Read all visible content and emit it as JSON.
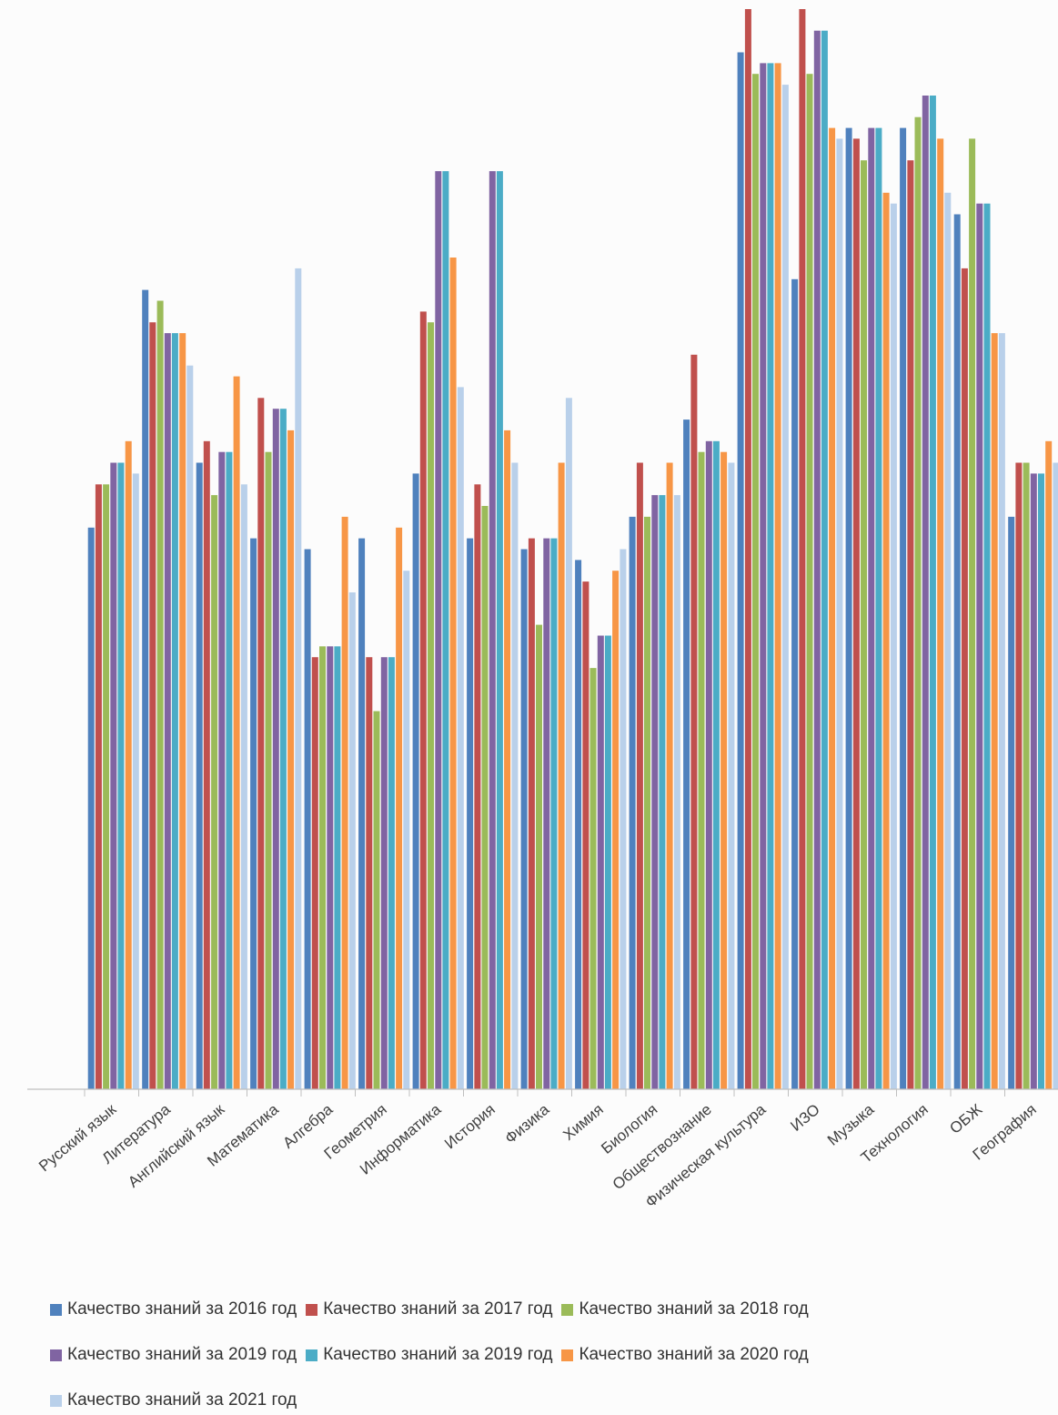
{
  "chart_data": {
    "type": "bar",
    "title": "",
    "xlabel": "",
    "ylabel": "",
    "ylim": [
      0,
      100
    ],
    "grid": false,
    "legend_position": "bottom",
    "categories": [
      "Русский язык",
      "Литература",
      "Английский язык",
      "Математика",
      "Алгебра",
      "Геометрия",
      "Информатика",
      "История",
      "Физика",
      "Химия",
      "Биология",
      "Обществознание",
      "Физическая культура",
      "ИЗО",
      "Музыка",
      "Технология",
      "ОБЖ",
      "География"
    ],
    "series": [
      {
        "name": "Качество знаний за 2016 год",
        "color": "#4f81bd",
        "values": [
          52,
          74,
          58,
          51,
          50,
          51,
          57,
          51,
          50,
          49,
          53,
          62,
          96,
          75,
          89,
          89,
          81,
          53
        ]
      },
      {
        "name": "Качество знаний за 2017 год",
        "color": "#c0504d",
        "values": [
          56,
          71,
          60,
          64,
          40,
          40,
          72,
          56,
          51,
          47,
          58,
          68,
          100,
          100,
          88,
          86,
          76,
          58
        ]
      },
      {
        "name": "Качество знаний за 2018 год",
        "color": "#9bbb59",
        "values": [
          56,
          73,
          55,
          59,
          41,
          35,
          71,
          54,
          43,
          39,
          53,
          59,
          94,
          94,
          86,
          90,
          88,
          58
        ]
      },
      {
        "name": "Качество знаний за 2019 год",
        "color": "#8064a2",
        "values": [
          58,
          70,
          59,
          63,
          41,
          40,
          85,
          85,
          51,
          42,
          55,
          60,
          95,
          98,
          89,
          92,
          82,
          57
        ]
      },
      {
        "name": "Качество знаний за 2019 год",
        "color": "#4bacc6",
        "values": [
          58,
          70,
          59,
          63,
          41,
          40,
          85,
          85,
          51,
          42,
          55,
          60,
          95,
          98,
          89,
          92,
          82,
          57
        ]
      },
      {
        "name": "Качество знаний за 2020 год",
        "color": "#f79646",
        "values": [
          60,
          70,
          66,
          61,
          53,
          52,
          77,
          61,
          58,
          48,
          58,
          59,
          95,
          89,
          83,
          88,
          70,
          60
        ]
      },
      {
        "name": "Качество знаний за 2021 год",
        "color": "#b9d0ea",
        "values": [
          57,
          67,
          56,
          76,
          46,
          48,
          65,
          58,
          64,
          50,
          55,
          58,
          93,
          88,
          82,
          83,
          70,
          58
        ]
      }
    ]
  }
}
